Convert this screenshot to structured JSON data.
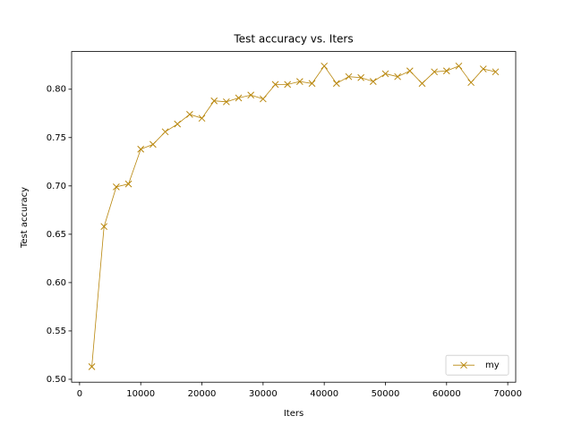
{
  "chart_data": {
    "type": "line",
    "title": "Test accuracy  vs. Iters",
    "xlabel": "Iters",
    "ylabel": "Test accuracy",
    "x": [
      2000,
      4000,
      6000,
      8000,
      10000,
      12000,
      14000,
      16000,
      18000,
      20000,
      22000,
      24000,
      26000,
      28000,
      30000,
      32000,
      34000,
      36000,
      38000,
      40000,
      42000,
      44000,
      46000,
      48000,
      50000,
      52000,
      54000,
      56000,
      58000,
      60000,
      62000,
      64000,
      66000,
      68000
    ],
    "series": [
      {
        "name": "my",
        "color": "#b8860b",
        "marker": "x",
        "values": [
          0.513,
          0.658,
          0.699,
          0.702,
          0.738,
          0.743,
          0.756,
          0.764,
          0.774,
          0.77,
          0.788,
          0.787,
          0.791,
          0.794,
          0.79,
          0.805,
          0.805,
          0.808,
          0.806,
          0.824,
          0.806,
          0.813,
          0.812,
          0.808,
          0.816,
          0.813,
          0.819,
          0.806,
          0.818,
          0.819,
          0.824,
          0.807,
          0.821,
          0.818
        ]
      }
    ],
    "xlim": [
      -1300,
      71300
    ],
    "ylim": [
      0.497,
      0.839
    ],
    "xticks": [
      0,
      10000,
      20000,
      30000,
      40000,
      50000,
      60000,
      70000
    ],
    "yticks": [
      {
        "value": 0.5,
        "label": "0.50"
      },
      {
        "value": 0.55,
        "label": "0.55"
      },
      {
        "value": 0.6,
        "label": "0.60"
      },
      {
        "value": 0.65,
        "label": "0.65"
      },
      {
        "value": 0.7,
        "label": "0.70"
      },
      {
        "value": 0.75,
        "label": "0.75"
      },
      {
        "value": 0.8,
        "label": "0.80"
      }
    ],
    "grid": false,
    "legend": "lower right"
  }
}
